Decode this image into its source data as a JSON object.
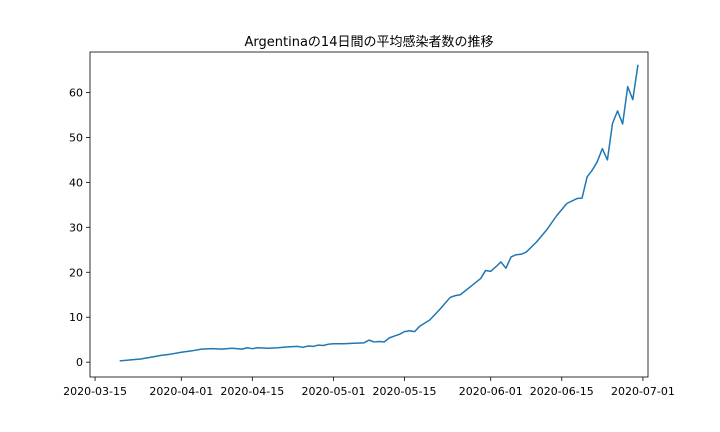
{
  "chart_data": {
    "type": "line",
    "title": "Argentinaの14日間の平均感染者数の推移",
    "xlabel": "",
    "ylabel": "",
    "x_axis_type": "date",
    "xlim": [
      "2020-03-14",
      "2020-07-02"
    ],
    "ylim": [
      -3.3,
      69
    ],
    "grid": false,
    "legend": "none",
    "line_color": "#1f77b4",
    "x_ticks": [
      "2020-03-15",
      "2020-04-01",
      "2020-04-15",
      "2020-05-01",
      "2020-05-15",
      "2020-06-01",
      "2020-06-15",
      "2020-07-01"
    ],
    "y_ticks": [
      0,
      10,
      20,
      30,
      40,
      50,
      60
    ],
    "series": [
      {
        "x": [
          "2020-03-20",
          "2020-03-22",
          "2020-03-24",
          "2020-03-26",
          "2020-03-28",
          "2020-03-30",
          "2020-04-01",
          "2020-04-03",
          "2020-04-05",
          "2020-04-07",
          "2020-04-09",
          "2020-04-11",
          "2020-04-13",
          "2020-04-14",
          "2020-04-15",
          "2020-04-16",
          "2020-04-18",
          "2020-04-20",
          "2020-04-22",
          "2020-04-24",
          "2020-04-25",
          "2020-04-26",
          "2020-04-27",
          "2020-04-28",
          "2020-04-29",
          "2020-04-30",
          "2020-05-01",
          "2020-05-03",
          "2020-05-05",
          "2020-05-07",
          "2020-05-08",
          "2020-05-09",
          "2020-05-10",
          "2020-05-11",
          "2020-05-12",
          "2020-05-13",
          "2020-05-14",
          "2020-05-15",
          "2020-05-16",
          "2020-05-17",
          "2020-05-18",
          "2020-05-20",
          "2020-05-22",
          "2020-05-24",
          "2020-05-25",
          "2020-05-26",
          "2020-05-28",
          "2020-05-30",
          "2020-05-31",
          "2020-06-01",
          "2020-06-02",
          "2020-06-03",
          "2020-06-04",
          "2020-06-05",
          "2020-06-06",
          "2020-06-07",
          "2020-06-08",
          "2020-06-10",
          "2020-06-12",
          "2020-06-14",
          "2020-06-16",
          "2020-06-18",
          "2020-06-19",
          "2020-06-20",
          "2020-06-21",
          "2020-06-22",
          "2020-06-23",
          "2020-06-24",
          "2020-06-25",
          "2020-06-26",
          "2020-06-27",
          "2020-06-28",
          "2020-06-29",
          "2020-06-30"
        ],
        "y": [
          0.3,
          0.5,
          0.7,
          1.1,
          1.5,
          1.8,
          2.2,
          2.5,
          2.9,
          3.0,
          2.9,
          3.1,
          2.9,
          3.2,
          3.0,
          3.2,
          3.1,
          3.2,
          3.4,
          3.5,
          3.3,
          3.6,
          3.5,
          3.8,
          3.7,
          4.0,
          4.1,
          4.1,
          4.2,
          4.3,
          4.9,
          4.5,
          4.6,
          4.5,
          5.4,
          5.8,
          6.2,
          6.8,
          7.0,
          6.8,
          8.0,
          9.4,
          11.8,
          14.4,
          14.8,
          15.0,
          16.8,
          18.6,
          20.4,
          20.2,
          21.2,
          22.3,
          20.9,
          23.4,
          23.9,
          24.0,
          24.5,
          26.7,
          29.4,
          32.6,
          35.3,
          36.4,
          36.5,
          41.2,
          42.7,
          44.6,
          47.5,
          45.0,
          53.1,
          55.9,
          53.0,
          61.3,
          58.4,
          66.0
        ]
      }
    ]
  }
}
